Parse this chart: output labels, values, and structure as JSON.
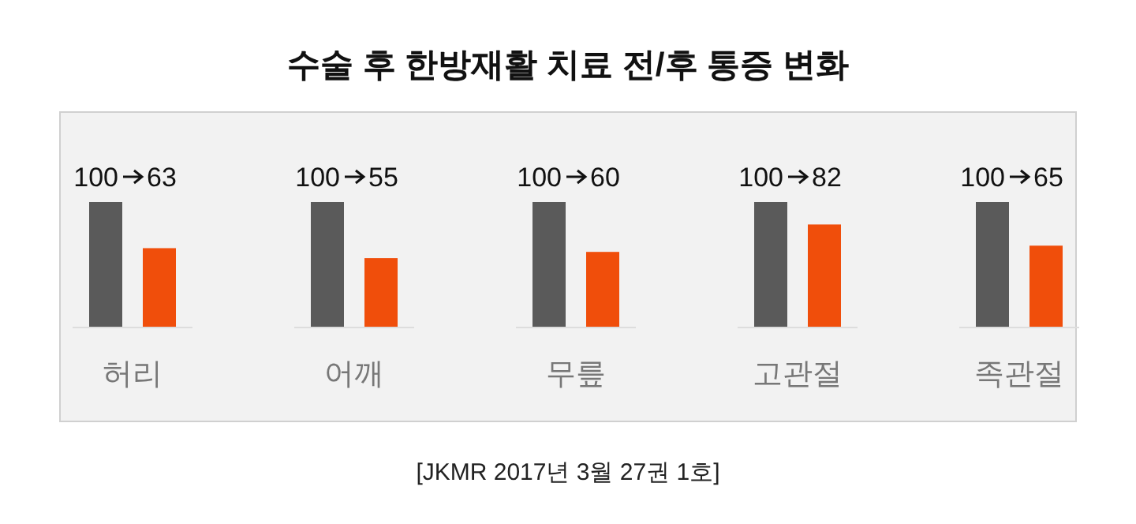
{
  "chart_data": {
    "type": "bar",
    "title": "수술 후 한방재활 치료 전/후 통증 변화",
    "categories": [
      "허리",
      "어깨",
      "무릎",
      "고관절",
      "족관절"
    ],
    "series": [
      {
        "color": "#5a5a5a",
        "values": [
          100,
          100,
          100,
          100,
          100
        ],
        "value_labels": [
          "100",
          "100",
          "100",
          "100",
          "100"
        ]
      },
      {
        "color": "#f04e0b",
        "values": [
          63,
          55,
          60,
          82,
          65
        ],
        "value_labels": [
          "63",
          "55",
          "60",
          "82",
          "65"
        ]
      }
    ],
    "annotations": [
      "[JKMR 2017년 3월 27권 1호]"
    ]
  }
}
